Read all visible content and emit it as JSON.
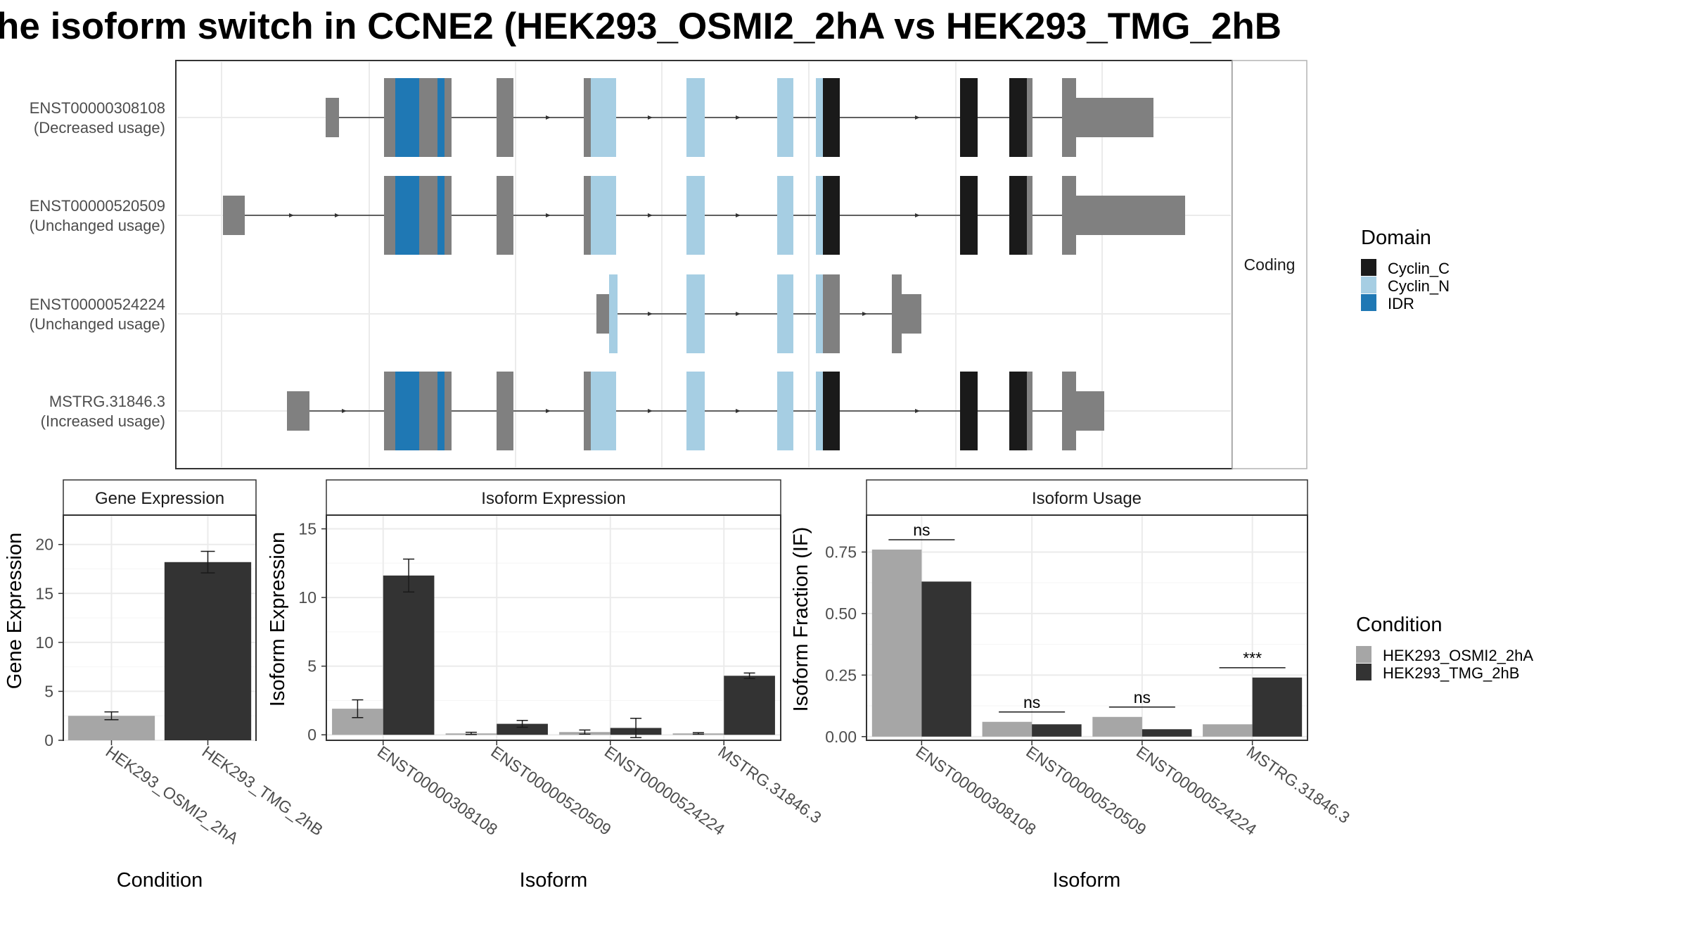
{
  "title": "he isoform switch in CCNE2 (HEK293_OSMI2_2hA vs HEK293_TMG_2hB",
  "colors": {
    "Cyclin_C": "#1a1a1a",
    "Cyclin_N": "#a6cee3",
    "IDR": "#1f78b4",
    "utr": "#808080",
    "cond_A": "#a6a6a6",
    "cond_B": "#333333"
  },
  "structure": {
    "facet_label": "Coding",
    "transcripts": [
      {
        "id": "ENST00000308108",
        "usage": "(Decreased usage)"
      },
      {
        "id": "ENST00000520509",
        "usage": "(Unchanged usage)"
      },
      {
        "id": "ENST00000524224",
        "usage": "(Unchanged usage)"
      },
      {
        "id": "MSTRG.31846.3",
        "usage": "(Increased usage)"
      }
    ]
  },
  "domain_legend": {
    "title": "Domain",
    "items": [
      {
        "label": "Cyclin_C",
        "color": "#1a1a1a"
      },
      {
        "label": "Cyclin_N",
        "color": "#a6cee3"
      },
      {
        "label": "IDR",
        "color": "#1f78b4"
      }
    ]
  },
  "condition_legend": {
    "title": "Condition",
    "items": [
      {
        "label": "HEK293_OSMI2_2hA",
        "color": "#a6a6a6"
      },
      {
        "label": "HEK293_TMG_2hB",
        "color": "#333333"
      }
    ]
  },
  "chart_data": [
    {
      "type": "bar",
      "title": "Gene Expression",
      "xlabel": "Condition",
      "ylabel": "Gene Expression",
      "categories": [
        "HEK293_OSMI2_2hA",
        "HEK293_TMG_2hB"
      ],
      "values": [
        2.5,
        18.2
      ],
      "errors": [
        0.4,
        1.1
      ],
      "ylim": [
        0,
        23
      ],
      "yticks": [
        0,
        5,
        10,
        15,
        20
      ]
    },
    {
      "type": "bar",
      "title": "Isoform Expression",
      "xlabel": "Isoform",
      "ylabel": "Isoform Expression",
      "categories": [
        "ENST00000308108",
        "ENST00000520509",
        "ENST00000524224",
        "MSTRG.31846.3"
      ],
      "series": [
        {
          "name": "HEK293_OSMI2_2hA",
          "values": [
            1.9,
            0.1,
            0.2,
            0.1
          ],
          "errors": [
            0.65,
            0.08,
            0.15,
            0.06
          ]
        },
        {
          "name": "HEK293_TMG_2hB",
          "values": [
            11.6,
            0.8,
            0.5,
            4.3
          ],
          "errors": [
            1.2,
            0.25,
            0.7,
            0.2
          ]
        }
      ],
      "ylim": [
        -0.4,
        16
      ],
      "yticks": [
        0,
        5,
        10,
        15
      ]
    },
    {
      "type": "bar",
      "title": "Isoform Usage",
      "xlabel": "Isoform",
      "ylabel": "Isoform Fraction (IF)",
      "categories": [
        "ENST00000308108",
        "ENST00000520509",
        "ENST00000524224",
        "MSTRG.31846.3"
      ],
      "series": [
        {
          "name": "HEK293_OSMI2_2hA",
          "values": [
            0.76,
            0.06,
            0.08,
            0.05
          ]
        },
        {
          "name": "HEK293_TMG_2hB",
          "values": [
            0.63,
            0.05,
            0.03,
            0.24
          ]
        }
      ],
      "significance": [
        "ns",
        "ns",
        "ns",
        "***"
      ],
      "ylim": [
        -0.015,
        0.9
      ],
      "yticks": [
        0.0,
        0.25,
        0.5,
        0.75
      ],
      "ytick_labels": [
        "0.00",
        "0.25",
        "0.50",
        "0.75"
      ]
    }
  ]
}
